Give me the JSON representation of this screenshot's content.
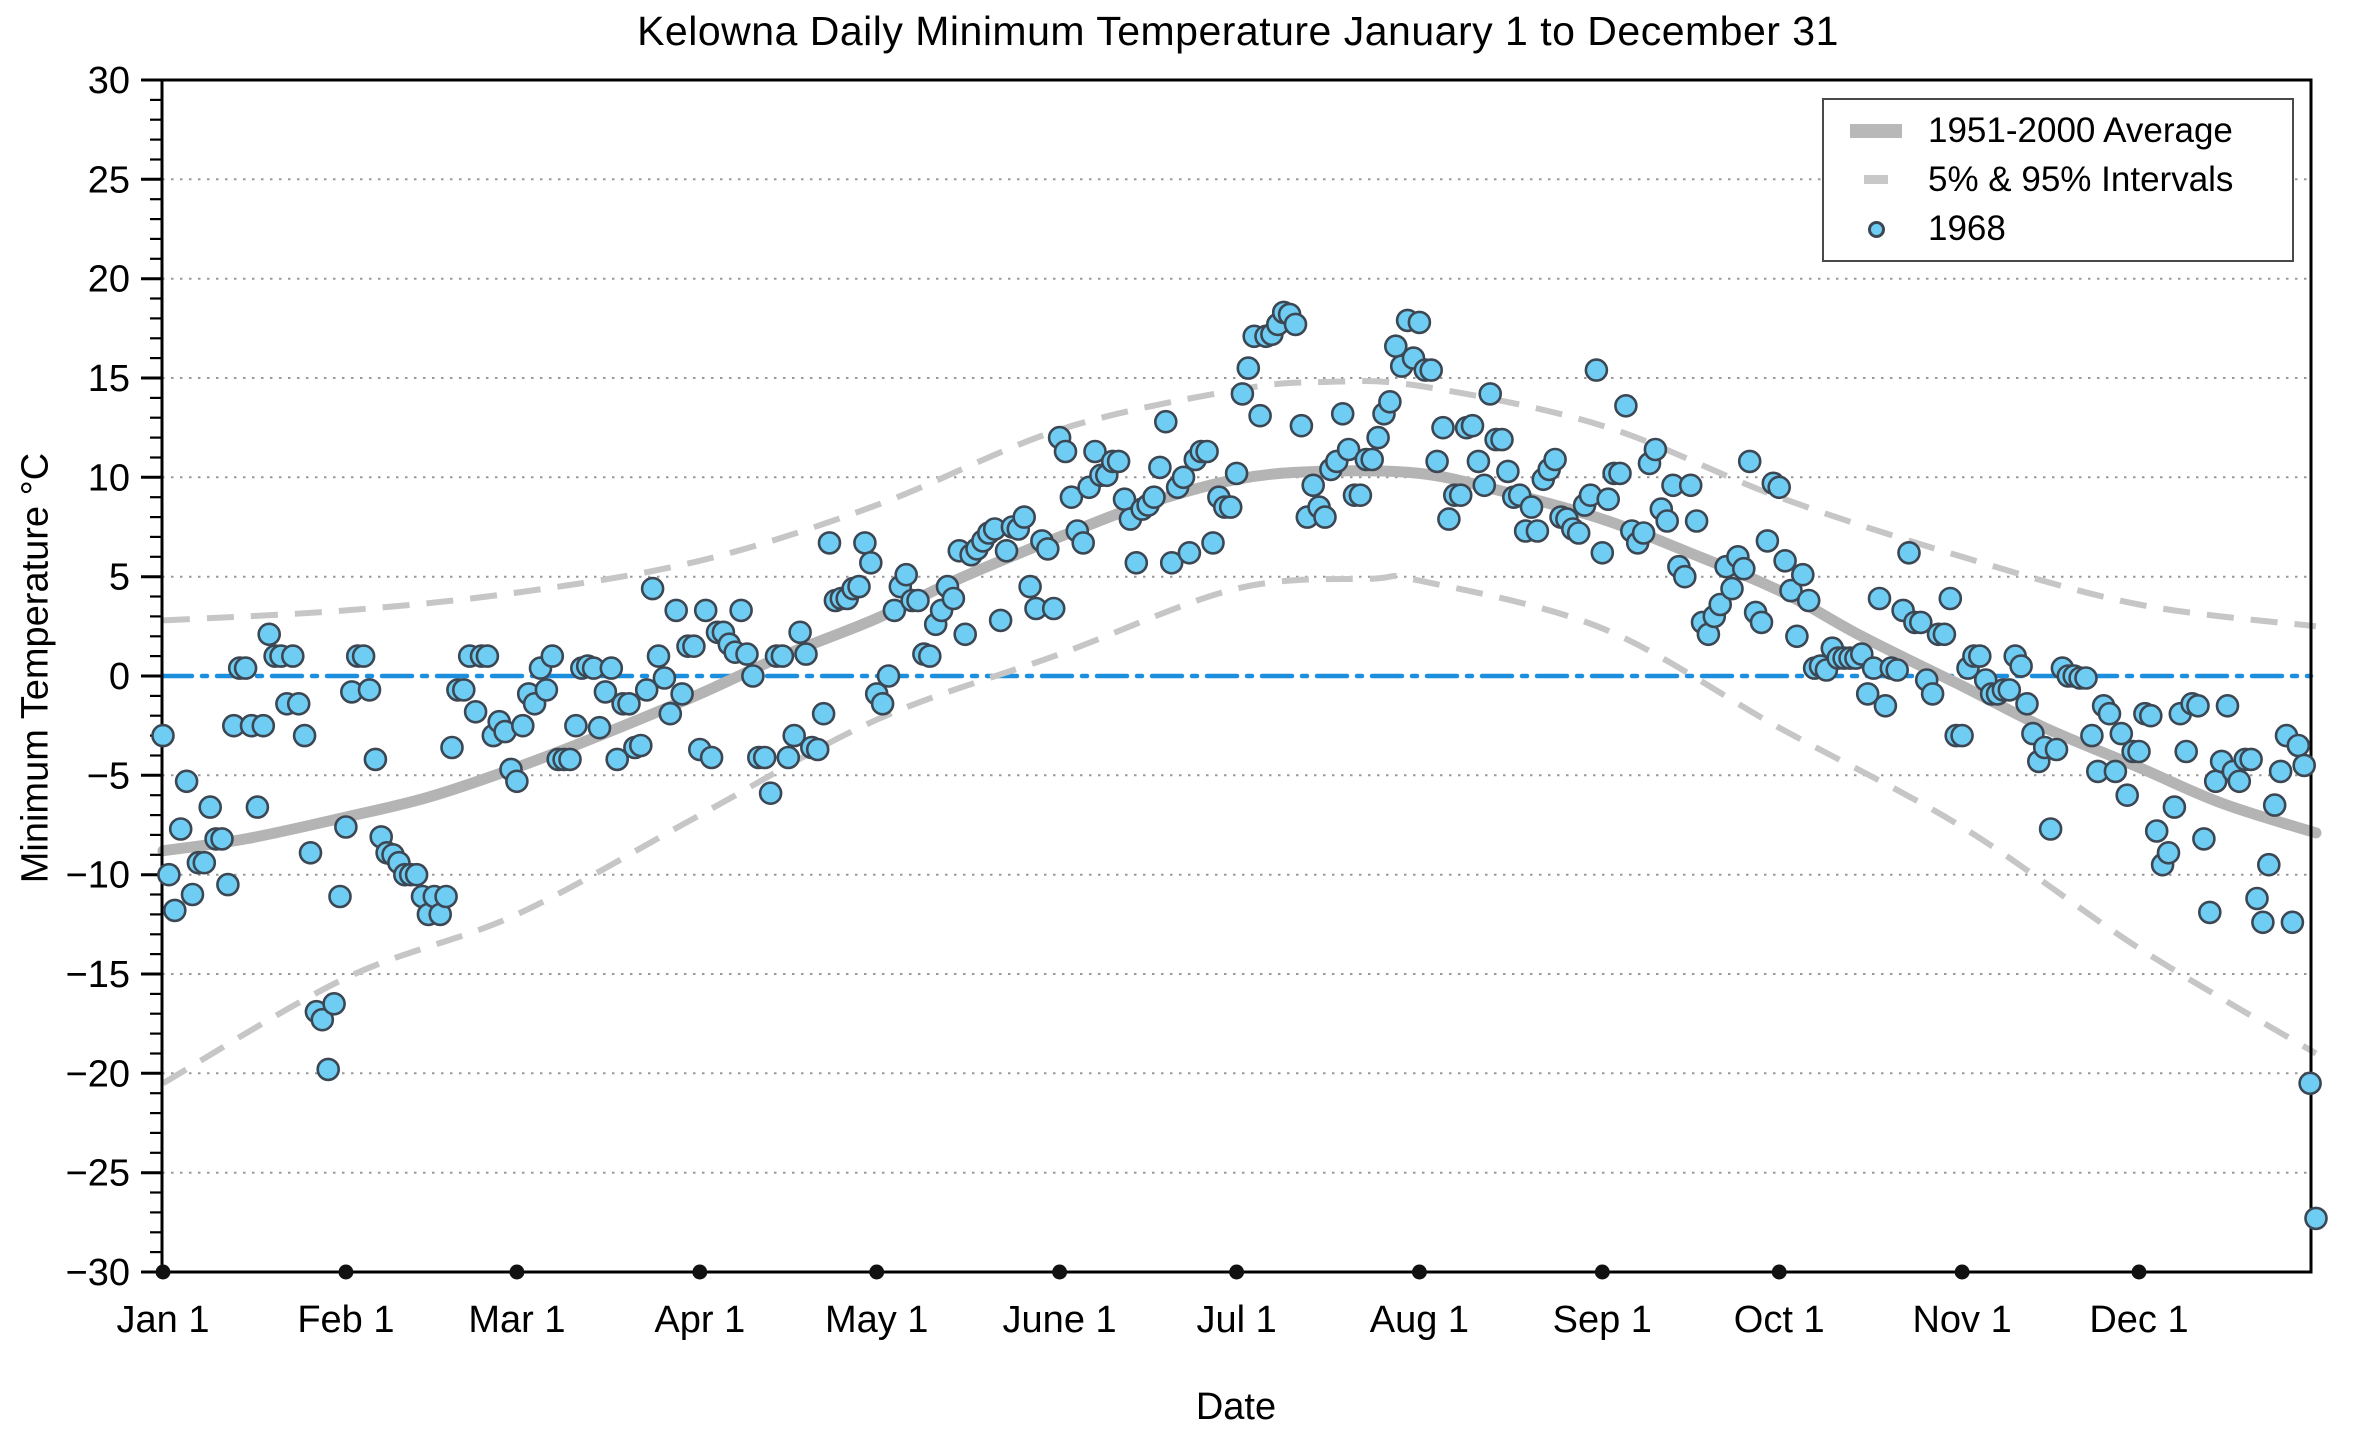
{
  "title": "Kelowna Daily Minimum Temperature January 1 to December 31",
  "legend": {
    "items": [
      {
        "label": "1951-2000 Average",
        "marker": "thick-gray-line"
      },
      {
        "label": "5% & 95% Intervals",
        "marker": "gray-dash"
      },
      {
        "label": "1968",
        "marker": "blue-dot"
      }
    ]
  },
  "colors": {
    "scatter_fill": "#6fcdf3",
    "scatter_stroke": "#3c4754",
    "average_line": "#b4b4b4",
    "interval_dash": "#c6c6c6",
    "zero_line": "#1b8ede",
    "gridline": "#999999",
    "axis": "#000000",
    "month_tick_dot": "#111111"
  },
  "chart_data": {
    "type": "scatter",
    "title": "Kelowna Daily Minimum Temperature January 1 to December 31",
    "xlabel": "Date",
    "ylabel": "Minimum Temperature °C",
    "ylim": [
      -30,
      30
    ],
    "xlim_days": [
      1,
      366
    ],
    "grid": "dotted-horizontal",
    "legend_position": "top-right",
    "y_ticks": [
      30,
      25,
      20,
      15,
      10,
      5,
      0,
      -5,
      -10,
      -15,
      -20,
      -25,
      -30
    ],
    "y_minor_tick_step": 1,
    "x_ticks": [
      {
        "label": "Jan 1",
        "day": 1
      },
      {
        "label": "Feb 1",
        "day": 32
      },
      {
        "label": "Mar 1",
        "day": 61
      },
      {
        "label": "Apr 1",
        "day": 92
      },
      {
        "label": "May 1",
        "day": 122
      },
      {
        "label": "June 1",
        "day": 153
      },
      {
        "label": "Jul 1",
        "day": 183
      },
      {
        "label": "Aug 1",
        "day": 214
      },
      {
        "label": "Sep 1",
        "day": 245
      },
      {
        "label": "Oct 1",
        "day": 275
      },
      {
        "label": "Nov 1",
        "day": 306
      },
      {
        "label": "Dec 1",
        "day": 336
      }
    ],
    "zero_line": {
      "value": 0,
      "style": "dash-dot",
      "color": "#1b8ede"
    },
    "month_order": [
      "Jan",
      "Feb",
      "Mar",
      "Apr",
      "May",
      "Jun",
      "Jul",
      "Aug",
      "Sep",
      "Oct",
      "Nov",
      "Dec"
    ],
    "month_day_offsets": {
      "Jan": 0,
      "Feb": 31,
      "Mar": 60,
      "Apr": 91,
      "May": 121,
      "Jun": 152,
      "Jul": 182,
      "Aug": 213,
      "Sep": 244,
      "Oct": 274,
      "Nov": 305,
      "Dec": 335
    },
    "series": [
      {
        "name": "1968",
        "type": "scatter",
        "units": "°C",
        "daily_min_temp_by_month": {
          "Jan": [
            -3.0,
            -10.0,
            -11.8,
            -7.7,
            -5.3,
            -11.0,
            -9.4,
            -9.4,
            -6.6,
            -8.2,
            -8.2,
            -10.5,
            -2.5,
            0.4,
            0.4,
            -2.5,
            -6.6,
            -2.5,
            2.1,
            1.0,
            1.0,
            -1.4,
            1.0,
            -1.4,
            -3.0,
            -8.9,
            -16.9,
            -17.3,
            -19.8,
            -16.5,
            -11.1
          ],
          "Feb": [
            -7.6,
            -0.8,
            1.0,
            1.0,
            -0.7,
            -4.2,
            -8.1,
            -8.9,
            -9.0,
            -9.4,
            -10.0,
            -10.0,
            -10.0,
            -11.1,
            -12.0,
            -11.1,
            -12.0,
            -11.1,
            -3.6,
            -0.7,
            -0.7,
            1.0,
            -1.8,
            1.0,
            1.0,
            -3.0,
            -2.3,
            -2.8,
            -4.7
          ],
          "Mar": [
            -5.3,
            -2.5,
            -0.9,
            -1.4,
            0.4,
            -0.7,
            1.0,
            -4.2,
            -4.2,
            -4.2,
            -2.5,
            0.4,
            0.5,
            0.4,
            -2.6,
            -0.8,
            0.4,
            -4.2,
            -1.4,
            -1.4,
            -3.6,
            -3.5,
            -0.7,
            4.4,
            1.0,
            -0.1,
            -1.9,
            3.3,
            -0.9,
            1.5,
            1.5
          ],
          "Apr": [
            -3.7,
            3.3,
            -4.1,
            2.2,
            2.2,
            1.6,
            1.2,
            3.3,
            1.1,
            0.0,
            -4.1,
            -4.1,
            -5.9,
            1.0,
            1.0,
            -4.1,
            -3.0,
            2.2,
            1.1,
            -3.6,
            -3.7,
            -1.9,
            6.7,
            3.8,
            3.9,
            3.9,
            4.4,
            4.5,
            6.7,
            5.7
          ],
          "May": [
            -0.9,
            -1.4,
            0.0,
            3.3,
            4.5,
            5.1,
            3.8,
            3.8,
            1.1,
            1.0,
            2.6,
            3.3,
            4.5,
            3.9,
            6.3,
            2.1,
            6.1,
            6.4,
            6.8,
            7.2,
            7.4,
            2.8,
            6.3,
            7.5,
            7.4,
            8.0,
            4.5,
            3.4,
            6.8,
            6.4,
            3.4
          ],
          "Jun": [
            12.0,
            11.3,
            9.0,
            7.3,
            6.7,
            9.5,
            11.3,
            10.1,
            10.1,
            10.8,
            10.8,
            8.9,
            7.9,
            5.7,
            8.4,
            8.6,
            9.0,
            10.5,
            12.8,
            5.7,
            9.5,
            10.0,
            6.2,
            10.9,
            11.3,
            11.3,
            6.7,
            9.0,
            8.5,
            8.5
          ],
          "Jul": [
            10.2,
            14.2,
            15.5,
            17.1,
            13.1,
            17.1,
            17.2,
            17.7,
            18.3,
            18.2,
            17.7,
            12.6,
            8.0,
            9.6,
            8.5,
            8.0,
            10.4,
            10.8,
            13.2,
            11.4,
            9.1,
            9.1,
            10.9,
            10.9,
            12.0,
            13.2,
            13.8,
            16.6,
            15.6,
            17.9,
            16.0
          ],
          "Aug": [
            17.8,
            15.4,
            15.4,
            10.8,
            12.5,
            7.9,
            9.1,
            9.1,
            12.5,
            12.6,
            10.8,
            9.6,
            14.2,
            11.9,
            11.9,
            10.3,
            9.0,
            9.1,
            7.3,
            8.5,
            7.3,
            9.9,
            10.4,
            10.9,
            8.0,
            7.9,
            7.4,
            7.2,
            8.6,
            9.1,
            15.4
          ],
          "Sep": [
            6.2,
            8.9,
            10.2,
            10.2,
            13.6,
            7.3,
            6.7,
            7.2,
            10.7,
            11.4,
            8.4,
            7.8,
            9.6,
            5.5,
            5.0,
            9.6,
            7.8,
            2.7,
            2.1,
            3.0,
            3.6,
            5.5,
            4.4,
            6.0,
            5.4,
            10.8,
            3.2,
            2.7,
            6.8,
            9.7
          ],
          "Oct": [
            9.5,
            5.8,
            4.3,
            2.0,
            5.1,
            3.8,
            0.4,
            0.5,
            0.3,
            1.4,
            0.9,
            0.9,
            0.9,
            0.9,
            1.1,
            -0.9,
            0.4,
            3.9,
            -1.5,
            0.4,
            0.3,
            3.3,
            6.2,
            2.7,
            2.7,
            -0.2,
            -0.9,
            2.1,
            2.1,
            3.9,
            -3.0
          ],
          "Nov": [
            -3.0,
            0.4,
            1.0,
            1.0,
            -0.2,
            -0.9,
            -0.9,
            -0.7,
            -0.7,
            1.0,
            0.5,
            -1.4,
            -2.9,
            -4.3,
            -3.6,
            -7.7,
            -3.7,
            0.4,
            0.0,
            0.0,
            -0.1,
            -0.1,
            -3.0,
            -4.8,
            -1.5,
            -1.9,
            -4.8,
            -2.9,
            -6.0,
            -3.8
          ],
          "Dec": [
            -3.8,
            -1.9,
            -2.0,
            -7.8,
            -9.5,
            -8.9,
            -6.6,
            -1.9,
            -3.8,
            -1.4,
            -1.5,
            -8.2,
            -11.9,
            -5.3,
            -4.3,
            -1.5,
            -4.8,
            -5.3,
            -4.2,
            -4.2,
            -11.2,
            -12.4,
            -9.5,
            -6.5,
            -4.8,
            -3.0,
            -12.4,
            -3.5,
            -4.5,
            -20.5,
            -27.3
          ]
        }
      },
      {
        "name": "1951-2000 Average",
        "type": "line",
        "points": [
          [
            1,
            -8.8
          ],
          [
            15,
            -8.2
          ],
          [
            32,
            -7.1
          ],
          [
            46,
            -6.1
          ],
          [
            61,
            -4.6
          ],
          [
            75,
            -3.0
          ],
          [
            92,
            -0.9
          ],
          [
            106,
            1.0
          ],
          [
            122,
            2.9
          ],
          [
            136,
            4.9
          ],
          [
            153,
            7.0
          ],
          [
            167,
            8.6
          ],
          [
            183,
            9.9
          ],
          [
            197,
            10.3
          ],
          [
            214,
            10.2
          ],
          [
            228,
            9.3
          ],
          [
            245,
            7.9
          ],
          [
            259,
            6.3
          ],
          [
            275,
            4.3
          ],
          [
            289,
            2.0
          ],
          [
            306,
            -0.5
          ],
          [
            320,
            -2.6
          ],
          [
            336,
            -4.6
          ],
          [
            350,
            -6.4
          ],
          [
            366,
            -7.9
          ]
        ]
      },
      {
        "name": "95% Interval",
        "type": "dashed-line",
        "points": [
          [
            1,
            2.8
          ],
          [
            32,
            3.3
          ],
          [
            61,
            4.2
          ],
          [
            92,
            5.8
          ],
          [
            122,
            8.6
          ],
          [
            153,
            12.4
          ],
          [
            183,
            14.4
          ],
          [
            198,
            14.8
          ],
          [
            214,
            14.6
          ],
          [
            245,
            12.6
          ],
          [
            275,
            9.0
          ],
          [
            306,
            6.0
          ],
          [
            336,
            3.6
          ],
          [
            366,
            2.5
          ]
        ]
      },
      {
        "name": "5% Interval",
        "type": "dashed-line",
        "points": [
          [
            1,
            -20.5
          ],
          [
            32,
            -15.2
          ],
          [
            61,
            -12.0
          ],
          [
            92,
            -7.0
          ],
          [
            122,
            -2.2
          ],
          [
            153,
            1.1
          ],
          [
            183,
            4.4
          ],
          [
            206,
            4.9
          ],
          [
            214,
            4.8
          ],
          [
            245,
            2.4
          ],
          [
            275,
            -2.6
          ],
          [
            306,
            -7.6
          ],
          [
            336,
            -13.7
          ],
          [
            366,
            -19.0
          ]
        ]
      }
    ]
  }
}
